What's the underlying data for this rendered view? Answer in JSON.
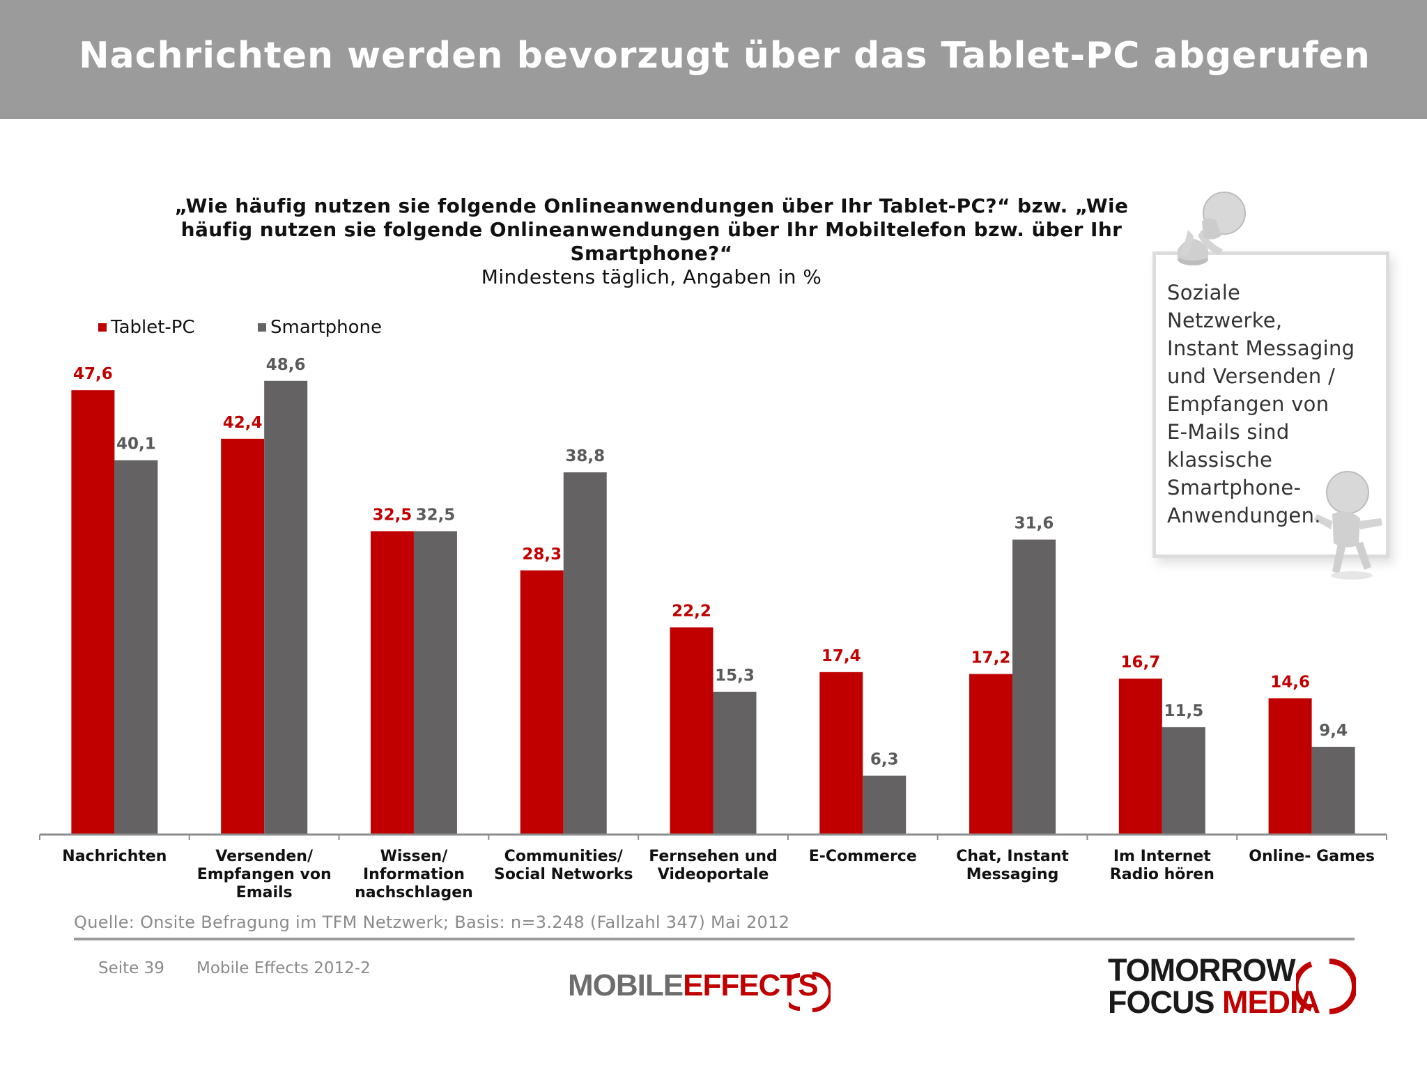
{
  "header": {
    "title": "Nachrichten werden bevorzugt über das Tablet-PC abgerufen"
  },
  "chart_data": {
    "type": "bar",
    "title": "„Wie häufig nutzen sie folgende Onlineanwendungen über Ihr Tablet-PC?“ bzw. „Wie häufig nutzen sie folgende Onlineanwendungen über Ihr Mobiltelefon bzw. über Ihr Smartphone?“",
    "subtitle": "Mindestens täglich, Angaben in %",
    "categories": [
      "Nachrichten",
      "Versenden/ Empfangen von Emails",
      "Wissen/ Information nachschlagen",
      "Communities/ Social Networks",
      "Fernsehen und Videoportale",
      "E-Commerce",
      "Chat, Instant Messaging",
      "Im Internet Radio hören",
      "Online- Games"
    ],
    "category_lines": [
      [
        "Nachrichten"
      ],
      [
        "Versenden/",
        "Empfangen von",
        "Emails"
      ],
      [
        "Wissen/",
        "Information",
        "nachschlagen"
      ],
      [
        "Communities/",
        "Social Networks"
      ],
      [
        "Fernsehen und",
        "Videoportale"
      ],
      [
        "E-Commerce"
      ],
      [
        "Chat, Instant",
        "Messaging"
      ],
      [
        "Im Internet",
        "Radio hören"
      ],
      [
        "Online- Games"
      ]
    ],
    "series": [
      {
        "name": "Tablet-PC",
        "color": "#c00000",
        "values": [
          47.6,
          42.4,
          32.5,
          28.3,
          22.2,
          17.4,
          17.2,
          16.7,
          14.6
        ],
        "labels": [
          "47,6",
          "42,4",
          "32,5",
          "28,3",
          "22,2",
          "17,4",
          "17,2",
          "16,7",
          "14,6"
        ]
      },
      {
        "name": "Smartphone",
        "color": "#646262",
        "values": [
          40.1,
          48.6,
          32.5,
          38.8,
          15.3,
          6.3,
          31.6,
          11.5,
          9.4
        ],
        "labels": [
          "40,1",
          "48,6",
          "32,5",
          "38,8",
          "15,3",
          "6,3",
          "31,6",
          "11,5",
          "9,4"
        ]
      }
    ],
    "ylim": [
      0,
      50
    ],
    "legend_position": "top-left",
    "grid": false
  },
  "note": {
    "text": "Soziale Netzwerke, Instant Messaging und Versenden / Empfangen von E-Mails sind klassische Smartphone-Anwendungen.",
    "lines": [
      "Soziale",
      "Netzwerke,",
      "Instant Messaging",
      "und Versenden /",
      "Empfangen von",
      "E-Mails sind",
      "klassische",
      "Smartphone-",
      "Anwendungen."
    ]
  },
  "footer": {
    "source": "Quelle: Onsite Befragung im TFM Netzwerk; Basis: n=3.248 (Fallzahl 347) Mai 2012",
    "page": "Seite 39",
    "report": "Mobile Effects 2012-2",
    "logo_mobile": "MOBILE",
    "logo_effects": "EFFECTS",
    "logo_tomorrow": "TOMORROW",
    "logo_focus": "FOCUS",
    "logo_media": "MEDIA"
  },
  "colors": {
    "header_bg": "#9b9b9b",
    "tablet": "#c00000",
    "smartphone": "#646262",
    "label_grey": "#5a5a5a"
  }
}
